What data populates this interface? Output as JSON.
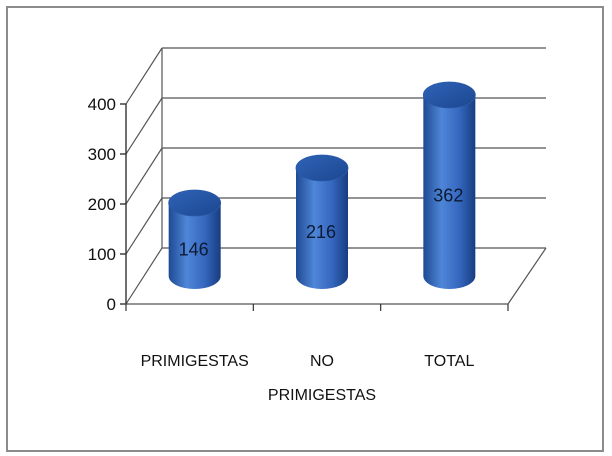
{
  "chart_data": {
    "type": "bar",
    "style": "3d-cylinder",
    "title": "",
    "xlabel": "",
    "ylabel": "",
    "ylim": [
      0,
      400
    ],
    "yticks": [
      0,
      100,
      200,
      300,
      400
    ],
    "grid": true,
    "legend": "none",
    "bar_color": "#3a6cc4",
    "categories": [
      {
        "lines": [
          "PRIMIGESTAS"
        ]
      },
      {
        "lines": [
          "NO",
          "PRIMIGESTAS"
        ]
      },
      {
        "lines": [
          "TOTAL"
        ]
      }
    ],
    "values": [
      146,
      216,
      362
    ],
    "data_labels": [
      "146",
      "216",
      "362"
    ]
  }
}
